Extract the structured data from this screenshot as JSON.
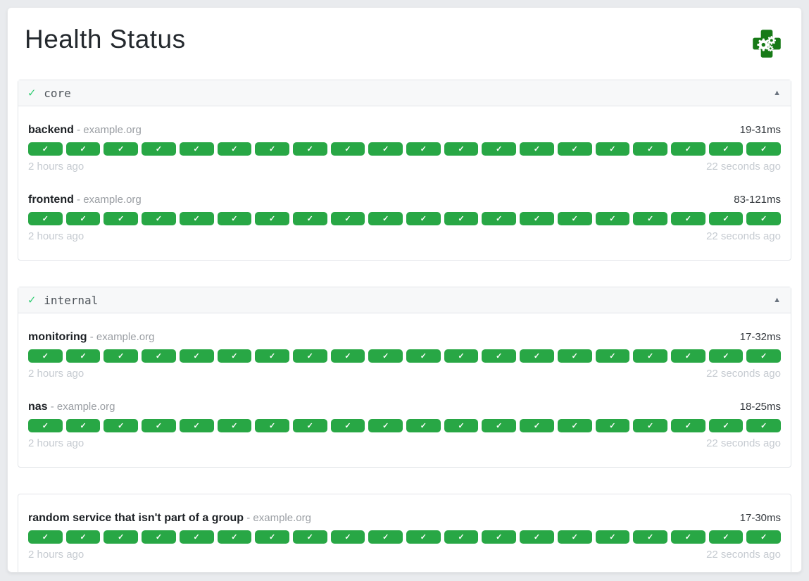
{
  "page": {
    "title": "Health Status"
  },
  "colors": {
    "segment_green": "#28a745",
    "check_green": "#2ecc71",
    "logo_green": "#177a17"
  },
  "icons": {
    "logo": "health-cross-gears-icon",
    "group_status_check": "✓",
    "collapse_triangle": "▲",
    "segment_check": "✓"
  },
  "groups": [
    {
      "name": "core",
      "has_header": true,
      "endpoints": [
        {
          "name": "backend",
          "separator": "-",
          "host": "example.org",
          "response_time": "19-31ms",
          "oldest_result": "2 hours ago",
          "newest_result": "22 seconds ago",
          "checks": 20
        },
        {
          "name": "frontend",
          "separator": "-",
          "host": "example.org",
          "response_time": "83-121ms",
          "oldest_result": "2 hours ago",
          "newest_result": "22 seconds ago",
          "checks": 20
        }
      ]
    },
    {
      "name": "internal",
      "has_header": true,
      "endpoints": [
        {
          "name": "monitoring",
          "separator": "-",
          "host": "example.org",
          "response_time": "17-32ms",
          "oldest_result": "2 hours ago",
          "newest_result": "22 seconds ago",
          "checks": 20
        },
        {
          "name": "nas",
          "separator": "-",
          "host": "example.org",
          "response_time": "18-25ms",
          "oldest_result": "2 hours ago",
          "newest_result": "22 seconds ago",
          "checks": 20
        }
      ]
    },
    {
      "name": "",
      "has_header": false,
      "endpoints": [
        {
          "name": "random service that isn't part of a group",
          "separator": "-",
          "host": "example.org",
          "response_time": "17-30ms",
          "oldest_result": "2 hours ago",
          "newest_result": "22 seconds ago",
          "checks": 20
        }
      ]
    }
  ]
}
